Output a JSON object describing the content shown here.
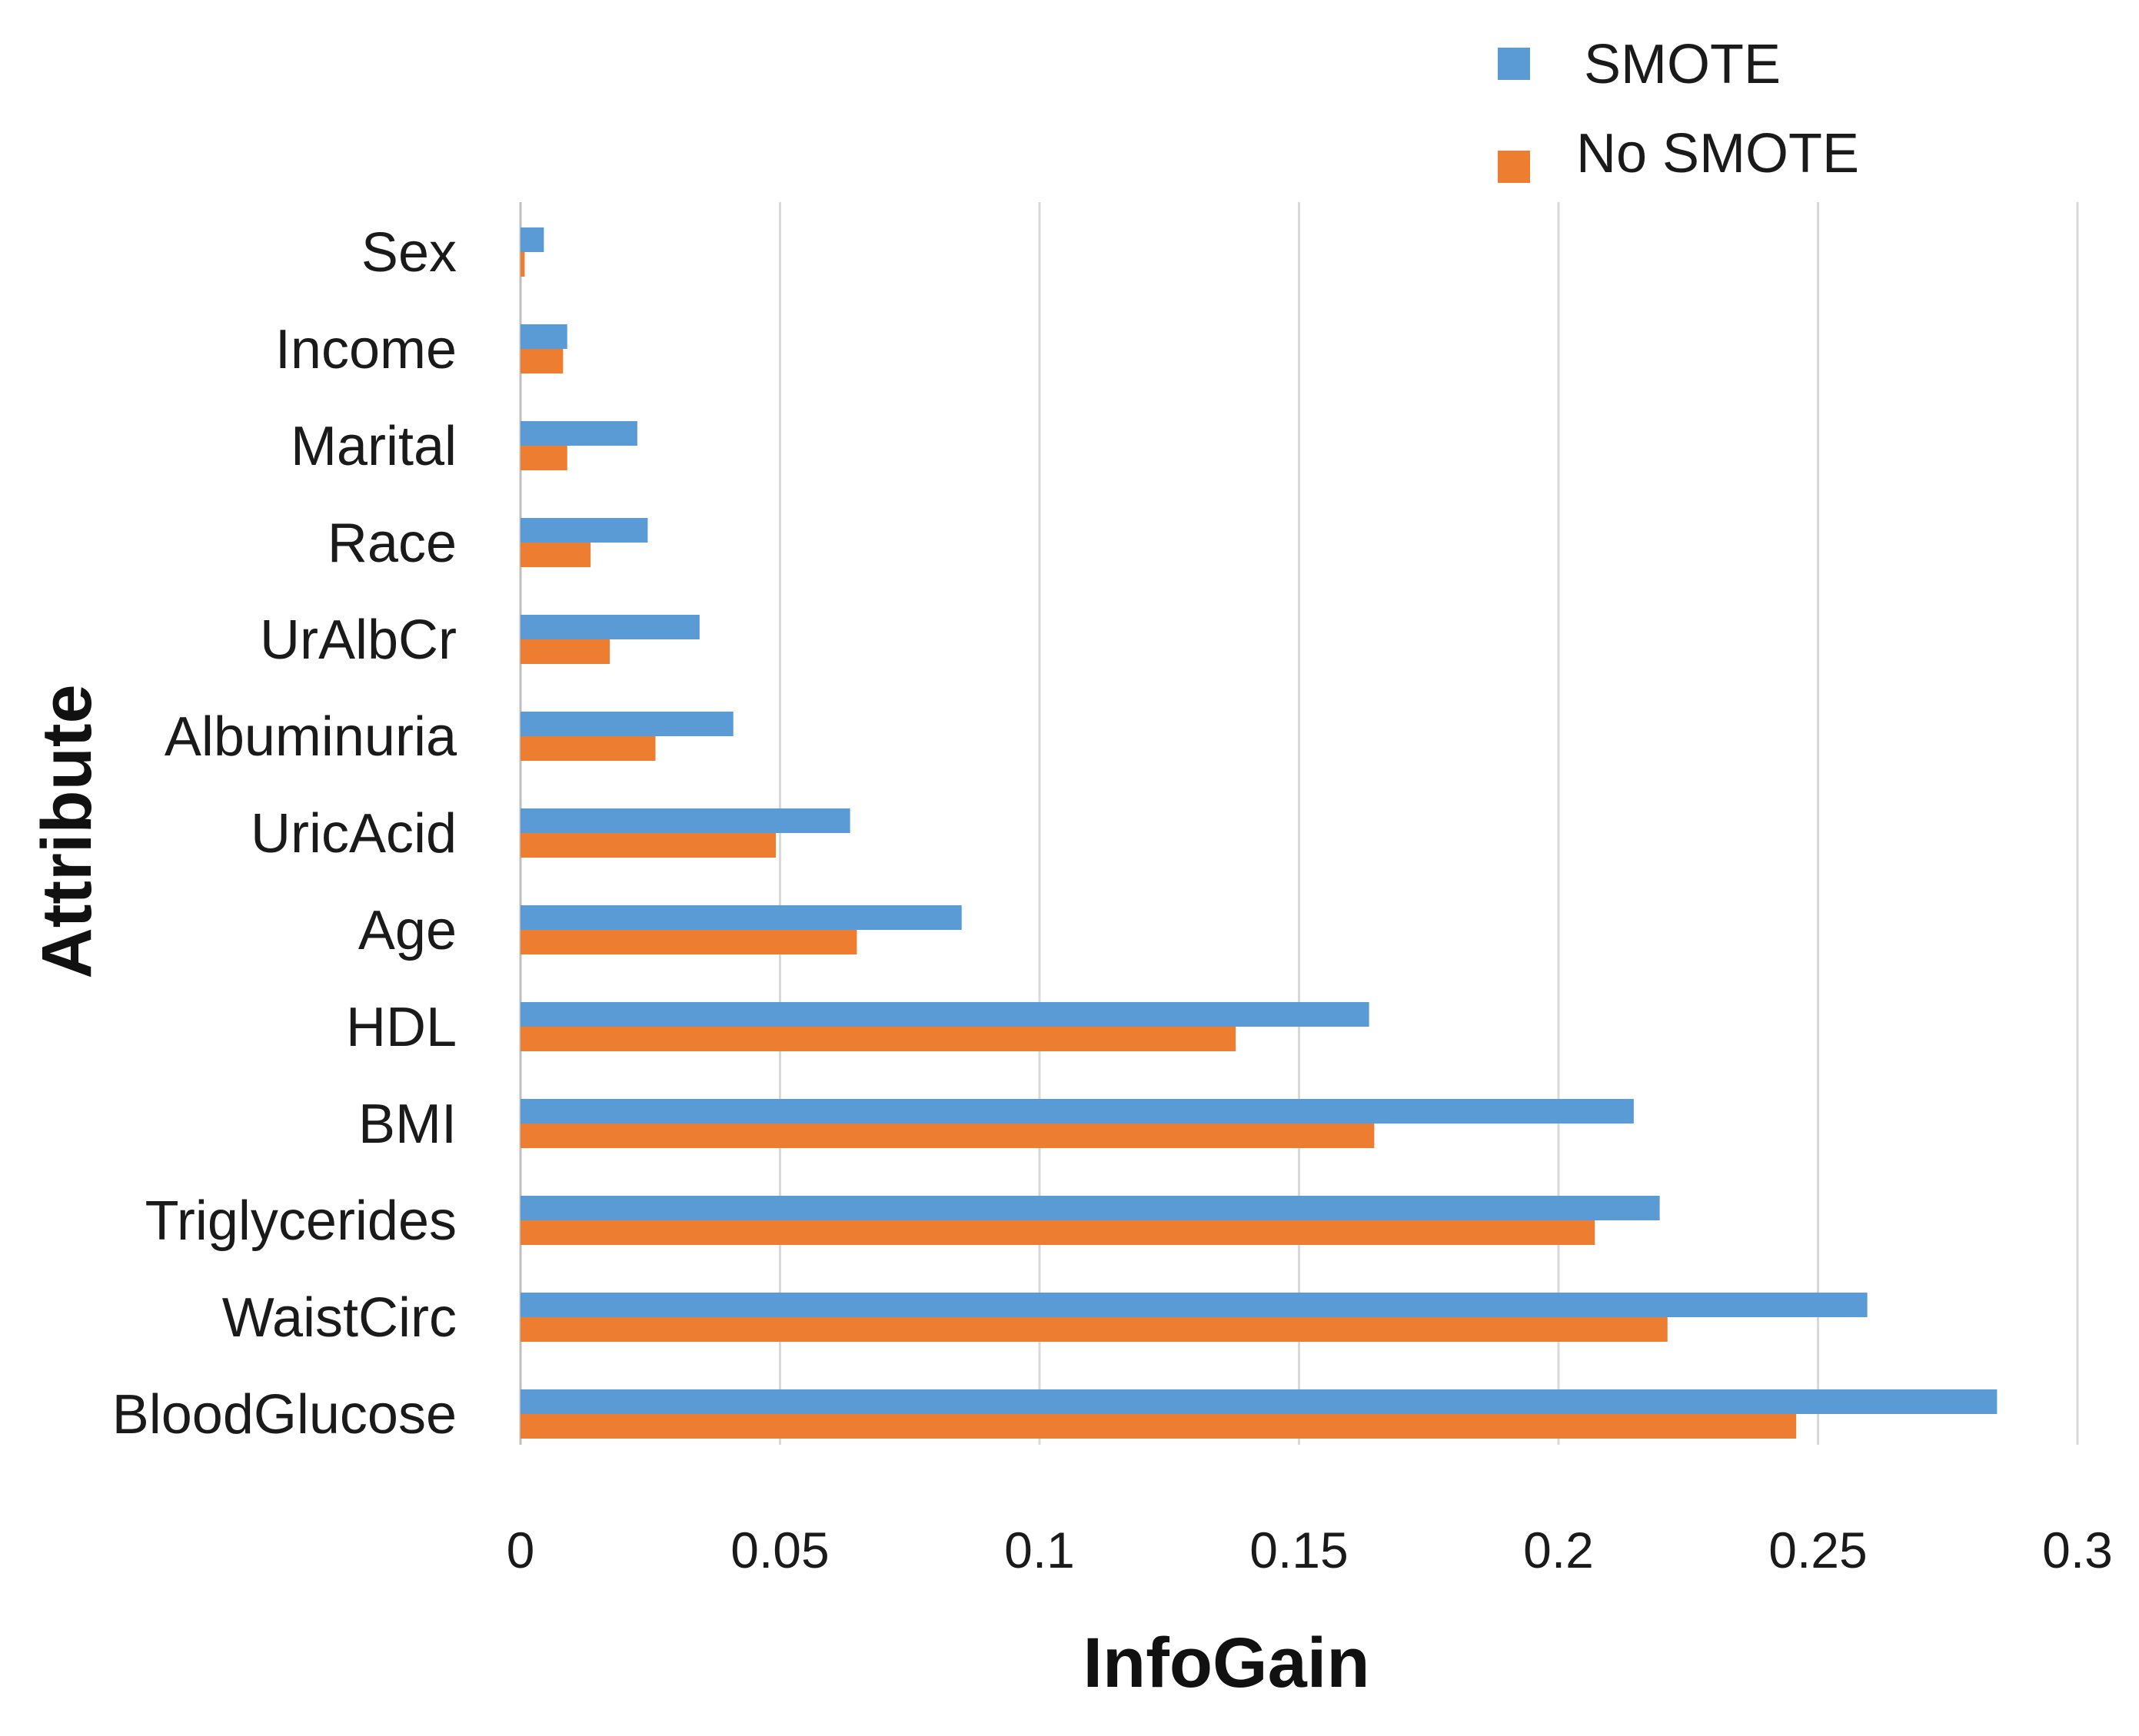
{
  "chart_data": {
    "type": "bar",
    "orientation": "horizontal",
    "title": "",
    "xlabel": "InfoGain",
    "ylabel": "Attribute",
    "xlim": [
      0,
      0.3
    ],
    "xticks": [
      0,
      0.05,
      0.1,
      0.15,
      0.2,
      0.25,
      0.3
    ],
    "xtick_labels": [
      "0",
      "0.05",
      "0.1",
      "0.15",
      "0.2",
      "0.25",
      "0.3"
    ],
    "grid": "vertical",
    "legend_position": "top-right",
    "categories": [
      "Sex",
      "Income",
      "Marital",
      "Race",
      "UrAlbCr",
      "Albuminuria",
      "UricAcid",
      "Age",
      "HDL",
      "BMI",
      "Triglycerides",
      "WaistCirc",
      "BloodGlucose"
    ],
    "series": [
      {
        "name": "SMOTE",
        "color": "#5B9BD5",
        "values": [
          0.0045,
          0.009,
          0.0225,
          0.0245,
          0.0345,
          0.041,
          0.0635,
          0.085,
          0.1635,
          0.2145,
          0.2195,
          0.2595,
          0.2845
        ]
      },
      {
        "name": "No SMOTE",
        "color": "#ED7D31",
        "values": [
          0.0008,
          0.0082,
          0.009,
          0.0135,
          0.0172,
          0.026,
          0.0492,
          0.0648,
          0.1378,
          0.1645,
          0.207,
          0.221,
          0.2458
        ]
      }
    ]
  },
  "colors": {
    "grid": "#D9D9D9",
    "axis": "#BFBFBF"
  }
}
